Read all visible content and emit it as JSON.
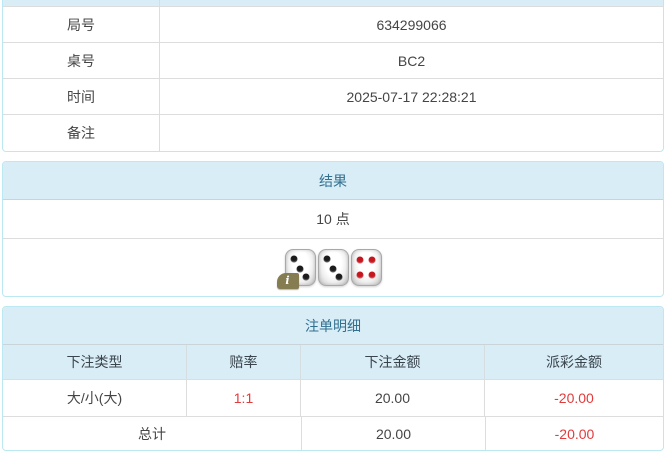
{
  "colors": {
    "panel_border": "#bce8f1",
    "header_bg": "#d9edf7",
    "header_text": "#31708f",
    "row_border": "#dddddd",
    "body_text": "#454545",
    "negative_red": "#e23b3b",
    "pip_black": "#1b1b1b",
    "pip_red": "#c4161e",
    "info_badge_bg": "#867c52"
  },
  "game_info": {
    "rows": [
      {
        "label": "局号",
        "value": "634299066"
      },
      {
        "label": "桌号",
        "value": "BC2"
      },
      {
        "label": "时间",
        "value": "2025-07-17 22:28:21"
      },
      {
        "label": "备注",
        "value": ""
      }
    ]
  },
  "result": {
    "title": "结果",
    "points": "10 点",
    "dice": [
      {
        "value": 3,
        "pip_color": "black"
      },
      {
        "value": 3,
        "pip_color": "black"
      },
      {
        "value": 4,
        "pip_color": "red"
      }
    ],
    "info_icon": "i"
  },
  "bet_details": {
    "title": "注单明细",
    "columns": [
      "下注类型",
      "赔率",
      "下注金额",
      "派彩金额"
    ],
    "rows": [
      {
        "bet_type": "大/小(大)",
        "odds": "1:1",
        "bet_amount": "20.00",
        "payout": "-20.00"
      }
    ],
    "total": {
      "label": "总计",
      "bet_amount": "20.00",
      "payout": "-20.00"
    }
  }
}
